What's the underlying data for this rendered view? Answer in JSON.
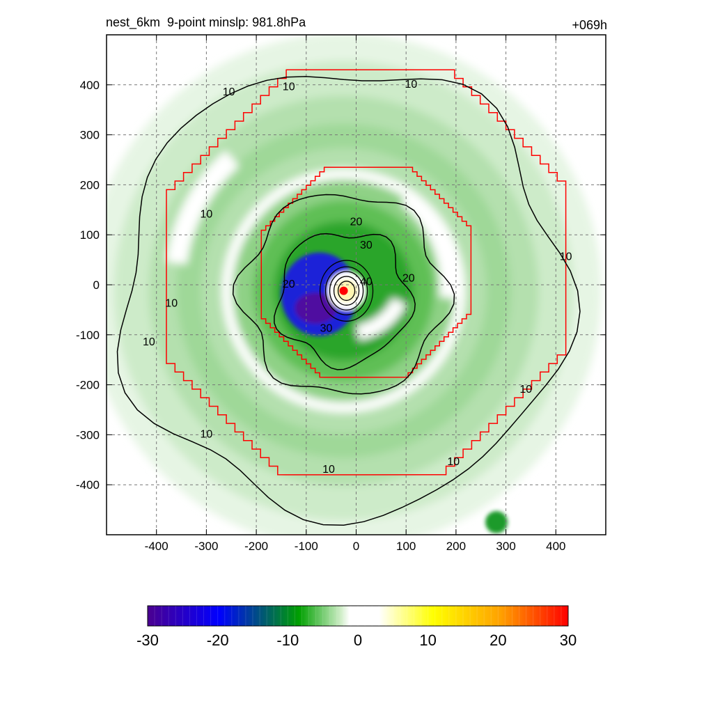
{
  "header": {
    "title": "nest_6km  9-point minslp: 981.8hPa",
    "forecast_hour": "+069h"
  },
  "chart_data": {
    "type": "heatmap",
    "title": "nest_6km  9-point minslp: 981.8hPa",
    "xlabel": "",
    "ylabel": "",
    "xlim": [
      -500,
      500
    ],
    "ylim": [
      -500,
      500
    ],
    "x_ticks": [
      -400,
      -300,
      -200,
      -100,
      0,
      100,
      200,
      300,
      400
    ],
    "y_ticks": [
      400,
      300,
      200,
      100,
      0,
      -100,
      -200,
      -300,
      -400
    ],
    "grid": true,
    "center_marker": [
      -25,
      -12
    ],
    "colorbar": {
      "range": [
        -30,
        30
      ],
      "ticks": [
        -30,
        -20,
        -10,
        0,
        10,
        20,
        30
      ],
      "colors": {
        "min": "#4b0090",
        "blue": "#0000ff",
        "green": "#00a000",
        "white": "#ffffff",
        "yellow": "#ffff00",
        "orange": "#ffa000",
        "max": "#ff0000"
      }
    },
    "contour_labels": [
      {
        "x": -255,
        "y": 385,
        "text": "10"
      },
      {
        "x": -135,
        "y": 395,
        "text": "10"
      },
      {
        "x": 110,
        "y": 400,
        "text": "10"
      },
      {
        "x": -300,
        "y": 140,
        "text": "10"
      },
      {
        "x": -370,
        "y": -38,
        "text": "10"
      },
      {
        "x": -415,
        "y": -115,
        "text": "10"
      },
      {
        "x": -300,
        "y": -300,
        "text": "10"
      },
      {
        "x": -55,
        "y": -370,
        "text": "10"
      },
      {
        "x": 195,
        "y": -355,
        "text": "10"
      },
      {
        "x": 340,
        "y": -210,
        "text": "10"
      },
      {
        "x": 420,
        "y": 55,
        "text": "10"
      },
      {
        "x": 0,
        "y": 125,
        "text": "20"
      },
      {
        "x": 105,
        "y": 12,
        "text": "20"
      },
      {
        "x": -135,
        "y": 0,
        "text": "20"
      },
      {
        "x": 20,
        "y": 78,
        "text": "30"
      },
      {
        "x": -60,
        "y": -88,
        "text": "30"
      },
      {
        "x": 20,
        "y": 5,
        "text": "40"
      }
    ],
    "domain_boxes": [
      {
        "name": "outer",
        "x_range": [
          -380,
          420
        ],
        "y_range": [
          -380,
          430
        ],
        "color": "#ff0000"
      },
      {
        "name": "inner",
        "x_range": [
          -190,
          230
        ],
        "y_range": [
          -185,
          235
        ],
        "color": "#ff0000"
      }
    ]
  }
}
